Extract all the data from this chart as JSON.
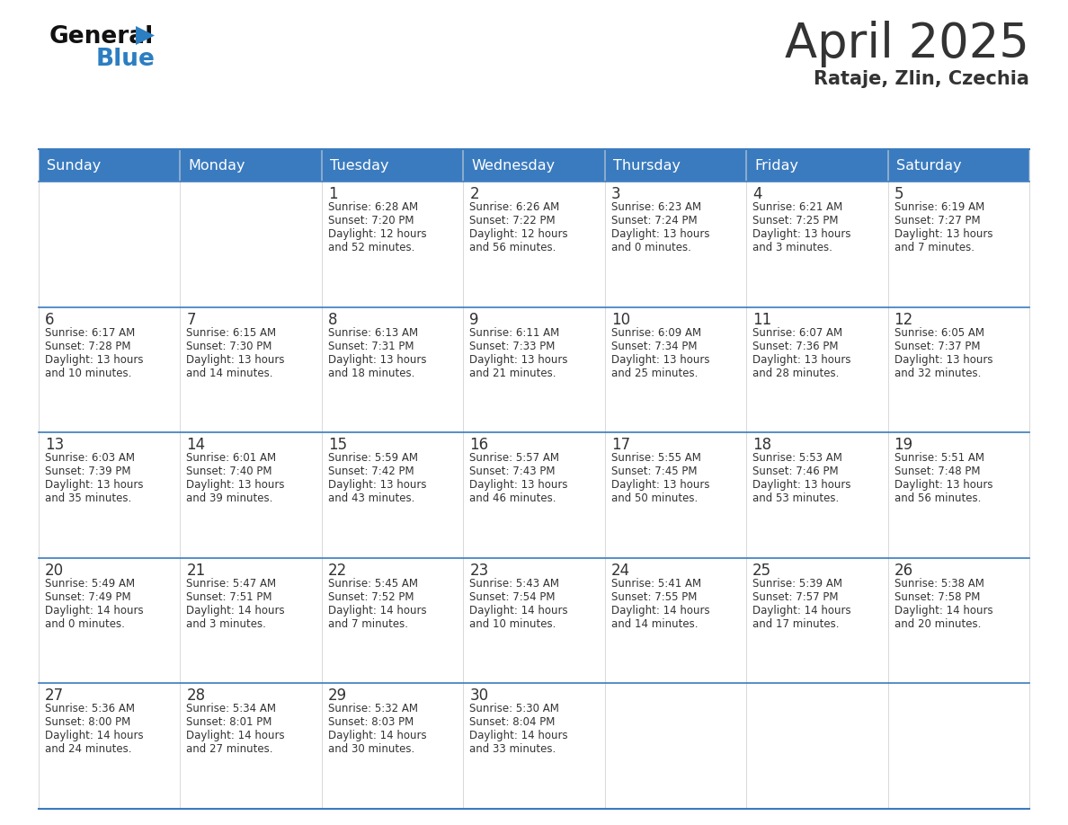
{
  "title": "April 2025",
  "subtitle": "Rataje, Zlin, Czechia",
  "header_color": "#3a7bbf",
  "header_text_color": "#ffffff",
  "day_names": [
    "Sunday",
    "Monday",
    "Tuesday",
    "Wednesday",
    "Thursday",
    "Friday",
    "Saturday"
  ],
  "weeks": [
    [
      {
        "day": "",
        "sunrise": "",
        "sunset": "",
        "daylight": ""
      },
      {
        "day": "",
        "sunrise": "",
        "sunset": "",
        "daylight": ""
      },
      {
        "day": "1",
        "sunrise": "Sunrise: 6:28 AM",
        "sunset": "Sunset: 7:20 PM",
        "daylight": "Daylight: 12 hours\nand 52 minutes."
      },
      {
        "day": "2",
        "sunrise": "Sunrise: 6:26 AM",
        "sunset": "Sunset: 7:22 PM",
        "daylight": "Daylight: 12 hours\nand 56 minutes."
      },
      {
        "day": "3",
        "sunrise": "Sunrise: 6:23 AM",
        "sunset": "Sunset: 7:24 PM",
        "daylight": "Daylight: 13 hours\nand 0 minutes."
      },
      {
        "day": "4",
        "sunrise": "Sunrise: 6:21 AM",
        "sunset": "Sunset: 7:25 PM",
        "daylight": "Daylight: 13 hours\nand 3 minutes."
      },
      {
        "day": "5",
        "sunrise": "Sunrise: 6:19 AM",
        "sunset": "Sunset: 7:27 PM",
        "daylight": "Daylight: 13 hours\nand 7 minutes."
      }
    ],
    [
      {
        "day": "6",
        "sunrise": "Sunrise: 6:17 AM",
        "sunset": "Sunset: 7:28 PM",
        "daylight": "Daylight: 13 hours\nand 10 minutes."
      },
      {
        "day": "7",
        "sunrise": "Sunrise: 6:15 AM",
        "sunset": "Sunset: 7:30 PM",
        "daylight": "Daylight: 13 hours\nand 14 minutes."
      },
      {
        "day": "8",
        "sunrise": "Sunrise: 6:13 AM",
        "sunset": "Sunset: 7:31 PM",
        "daylight": "Daylight: 13 hours\nand 18 minutes."
      },
      {
        "day": "9",
        "sunrise": "Sunrise: 6:11 AM",
        "sunset": "Sunset: 7:33 PM",
        "daylight": "Daylight: 13 hours\nand 21 minutes."
      },
      {
        "day": "10",
        "sunrise": "Sunrise: 6:09 AM",
        "sunset": "Sunset: 7:34 PM",
        "daylight": "Daylight: 13 hours\nand 25 minutes."
      },
      {
        "day": "11",
        "sunrise": "Sunrise: 6:07 AM",
        "sunset": "Sunset: 7:36 PM",
        "daylight": "Daylight: 13 hours\nand 28 minutes."
      },
      {
        "day": "12",
        "sunrise": "Sunrise: 6:05 AM",
        "sunset": "Sunset: 7:37 PM",
        "daylight": "Daylight: 13 hours\nand 32 minutes."
      }
    ],
    [
      {
        "day": "13",
        "sunrise": "Sunrise: 6:03 AM",
        "sunset": "Sunset: 7:39 PM",
        "daylight": "Daylight: 13 hours\nand 35 minutes."
      },
      {
        "day": "14",
        "sunrise": "Sunrise: 6:01 AM",
        "sunset": "Sunset: 7:40 PM",
        "daylight": "Daylight: 13 hours\nand 39 minutes."
      },
      {
        "day": "15",
        "sunrise": "Sunrise: 5:59 AM",
        "sunset": "Sunset: 7:42 PM",
        "daylight": "Daylight: 13 hours\nand 43 minutes."
      },
      {
        "day": "16",
        "sunrise": "Sunrise: 5:57 AM",
        "sunset": "Sunset: 7:43 PM",
        "daylight": "Daylight: 13 hours\nand 46 minutes."
      },
      {
        "day": "17",
        "sunrise": "Sunrise: 5:55 AM",
        "sunset": "Sunset: 7:45 PM",
        "daylight": "Daylight: 13 hours\nand 50 minutes."
      },
      {
        "day": "18",
        "sunrise": "Sunrise: 5:53 AM",
        "sunset": "Sunset: 7:46 PM",
        "daylight": "Daylight: 13 hours\nand 53 minutes."
      },
      {
        "day": "19",
        "sunrise": "Sunrise: 5:51 AM",
        "sunset": "Sunset: 7:48 PM",
        "daylight": "Daylight: 13 hours\nand 56 minutes."
      }
    ],
    [
      {
        "day": "20",
        "sunrise": "Sunrise: 5:49 AM",
        "sunset": "Sunset: 7:49 PM",
        "daylight": "Daylight: 14 hours\nand 0 minutes."
      },
      {
        "day": "21",
        "sunrise": "Sunrise: 5:47 AM",
        "sunset": "Sunset: 7:51 PM",
        "daylight": "Daylight: 14 hours\nand 3 minutes."
      },
      {
        "day": "22",
        "sunrise": "Sunrise: 5:45 AM",
        "sunset": "Sunset: 7:52 PM",
        "daylight": "Daylight: 14 hours\nand 7 minutes."
      },
      {
        "day": "23",
        "sunrise": "Sunrise: 5:43 AM",
        "sunset": "Sunset: 7:54 PM",
        "daylight": "Daylight: 14 hours\nand 10 minutes."
      },
      {
        "day": "24",
        "sunrise": "Sunrise: 5:41 AM",
        "sunset": "Sunset: 7:55 PM",
        "daylight": "Daylight: 14 hours\nand 14 minutes."
      },
      {
        "day": "25",
        "sunrise": "Sunrise: 5:39 AM",
        "sunset": "Sunset: 7:57 PM",
        "daylight": "Daylight: 14 hours\nand 17 minutes."
      },
      {
        "day": "26",
        "sunrise": "Sunrise: 5:38 AM",
        "sunset": "Sunset: 7:58 PM",
        "daylight": "Daylight: 14 hours\nand 20 minutes."
      }
    ],
    [
      {
        "day": "27",
        "sunrise": "Sunrise: 5:36 AM",
        "sunset": "Sunset: 8:00 PM",
        "daylight": "Daylight: 14 hours\nand 24 minutes."
      },
      {
        "day": "28",
        "sunrise": "Sunrise: 5:34 AM",
        "sunset": "Sunset: 8:01 PM",
        "daylight": "Daylight: 14 hours\nand 27 minutes."
      },
      {
        "day": "29",
        "sunrise": "Sunrise: 5:32 AM",
        "sunset": "Sunset: 8:03 PM",
        "daylight": "Daylight: 14 hours\nand 30 minutes."
      },
      {
        "day": "30",
        "sunrise": "Sunrise: 5:30 AM",
        "sunset": "Sunset: 8:04 PM",
        "daylight": "Daylight: 14 hours\nand 33 minutes."
      },
      {
        "day": "",
        "sunrise": "",
        "sunset": "",
        "daylight": ""
      },
      {
        "day": "",
        "sunrise": "",
        "sunset": "",
        "daylight": ""
      },
      {
        "day": "",
        "sunrise": "",
        "sunset": "",
        "daylight": ""
      }
    ]
  ],
  "logo_color_general": "#111111",
  "logo_color_blue": "#2b7ec1",
  "text_color": "#333333",
  "line_color": "#3a7bbf",
  "background_color": "#ffffff",
  "fig_width": 11.88,
  "fig_height": 9.18,
  "dpi": 100
}
